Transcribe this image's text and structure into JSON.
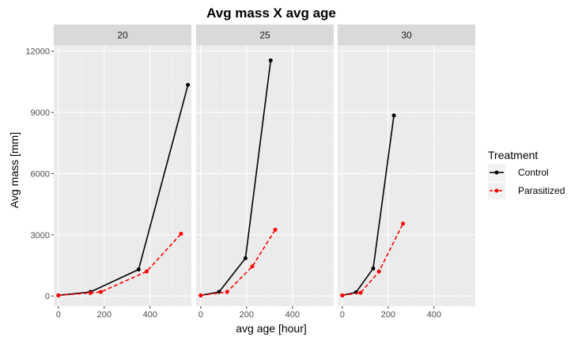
{
  "chart_data": {
    "type": "line",
    "title": "Avg mass X avg age",
    "xlabel": "avg age [hour]",
    "ylabel": "Avg mass [mm]",
    "xlim": [
      -20,
      580
    ],
    "ylim": [
      -500,
      12300
    ],
    "x_ticks": [
      0,
      200,
      400
    ],
    "y_ticks": [
      0,
      3000,
      6000,
      9000,
      12000
    ],
    "y_tick_labels": [
      "0",
      "3000",
      "6000",
      "9000",
      "12000"
    ],
    "legend": {
      "title": "Treatment",
      "position": "right",
      "entries": [
        {
          "name": "Control",
          "color": "#000000",
          "dash": "solid"
        },
        {
          "name": "Parasitized",
          "color": "#ff0000",
          "dash": "dashed"
        }
      ]
    },
    "facets": [
      {
        "label": "20",
        "series": [
          {
            "name": "Control",
            "x": [
              0,
              140,
              350,
              565
            ],
            "y": [
              30,
              200,
              1300,
              10350
            ]
          },
          {
            "name": "Parasitized",
            "x": [
              0,
              140,
              185,
              385,
              535
            ],
            "y": [
              30,
              150,
              200,
              1200,
              3050
            ]
          }
        ]
      },
      {
        "label": "25",
        "series": [
          {
            "name": "Control",
            "x": [
              0,
              80,
              195,
              305
            ],
            "y": [
              30,
              200,
              1850,
              11550
            ]
          },
          {
            "name": "Parasitized",
            "x": [
              0,
              115,
              225,
              325
            ],
            "y": [
              30,
              200,
              1450,
              3250
            ]
          }
        ]
      },
      {
        "label": "30",
        "series": [
          {
            "name": "Control",
            "x": [
              0,
              60,
              135,
              225
            ],
            "y": [
              30,
              180,
              1350,
              8850
            ]
          },
          {
            "name": "Parasitized",
            "x": [
              0,
              80,
              160,
              265
            ],
            "y": [
              30,
              160,
              1200,
              3550
            ]
          }
        ]
      }
    ],
    "grid": true,
    "colors": {
      "panel_bg": "#ebebeb",
      "strip_bg": "#d9d9d9",
      "grid_major": "#ffffff",
      "control": "#000000",
      "parasitized": "#ff0000"
    }
  }
}
